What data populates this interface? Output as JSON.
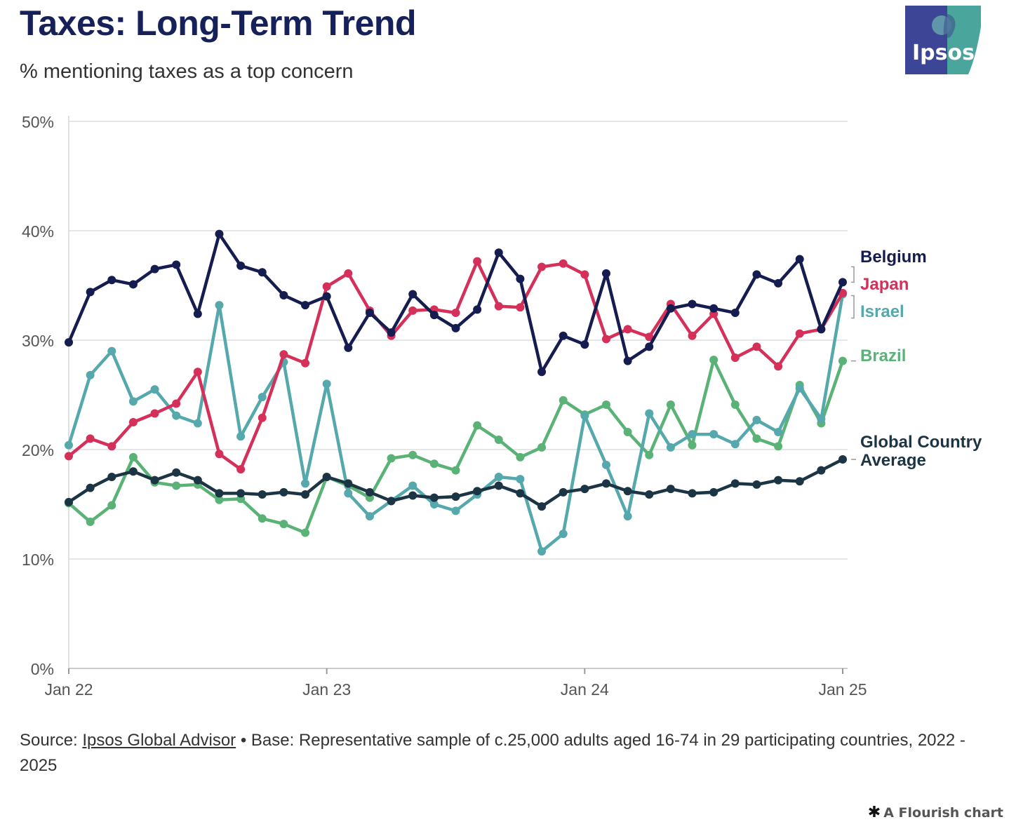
{
  "title": "Taxes: Long-Term Trend",
  "subtitle": "% mentioning taxes as a top concern",
  "logo_text": "Ipsos",
  "source": {
    "prefix": "Source: ",
    "link": "Ipsos Global Advisor",
    "text": " • Base: Representative sample of c.25,000 adults aged 16-74 in 29 participating countries, 2022 - 2025"
  },
  "credit": {
    "icon": "asterisk-icon",
    "label": "A Flourish chart"
  },
  "colors": {
    "title": "#16215a",
    "belgium": "#151c4f",
    "japan": "#d4305a",
    "israel": "#55a8ab",
    "brazil": "#5bb276",
    "global": "#1c3544",
    "logo_left": "#3d4596",
    "logo_right": "#4aa59c"
  },
  "chart_data": {
    "type": "line",
    "ylim": [
      0,
      50
    ],
    "y_ticks": [
      "0%",
      "10%",
      "20%",
      "30%",
      "40%",
      "50%"
    ],
    "x_ticks": [
      "Jan 22",
      "Jan 23",
      "Jan 24",
      "Jan 25"
    ],
    "x_start": "Jan 2022",
    "x_end": "Jan 2025",
    "grid": true,
    "legend": "right end labels",
    "series": [
      {
        "name": "Brazil",
        "key": "brazil",
        "values": [
          15.1,
          13.4,
          14.9,
          19.3,
          17.0,
          16.7,
          16.8,
          15.4,
          15.5,
          13.7,
          13.2,
          12.4,
          17.5,
          16.7,
          15.6,
          19.2,
          19.5,
          18.7,
          18.1,
          22.2,
          20.9,
          19.3,
          20.2,
          24.5,
          23.2,
          24.1,
          21.6,
          19.5,
          24.1,
          20.4,
          28.2,
          24.1,
          21.0,
          20.3,
          25.9,
          22.4,
          28.1
        ]
      },
      {
        "name": "Israel",
        "key": "israel",
        "values": [
          20.4,
          26.8,
          29.0,
          24.4,
          25.5,
          23.1,
          22.4,
          33.2,
          21.2,
          24.8,
          28.0,
          16.9,
          26.0,
          16.0,
          13.9,
          15.3,
          16.7,
          15.0,
          14.4,
          15.9,
          17.5,
          17.3,
          10.7,
          12.3,
          23.1,
          18.6,
          13.9,
          23.3,
          20.2,
          21.4,
          21.4,
          20.5,
          22.7,
          21.6,
          25.6,
          22.8,
          34.2
        ]
      },
      {
        "name": "Japan",
        "key": "japan",
        "values": [
          19.4,
          21.0,
          20.3,
          22.5,
          23.3,
          24.2,
          27.1,
          19.6,
          18.2,
          22.9,
          28.7,
          27.9,
          34.9,
          36.1,
          32.7,
          30.4,
          32.7,
          32.8,
          32.5,
          37.2,
          33.1,
          33.0,
          36.7,
          37.0,
          36.0,
          30.1,
          31.0,
          30.3,
          33.3,
          30.4,
          32.4,
          28.4,
          29.4,
          27.6,
          30.6,
          31.0,
          34.3
        ]
      },
      {
        "name": "Belgium",
        "key": "belgium",
        "values": [
          29.8,
          34.4,
          35.5,
          35.1,
          36.5,
          36.9,
          32.4,
          39.7,
          36.8,
          36.2,
          34.1,
          33.2,
          34.0,
          29.3,
          32.5,
          30.7,
          34.2,
          32.3,
          31.1,
          32.8,
          38.0,
          35.6,
          27.1,
          30.4,
          29.6,
          36.1,
          28.1,
          29.4,
          32.9,
          33.3,
          32.9,
          32.5,
          36.0,
          35.2,
          37.4,
          31.0,
          35.3
        ]
      },
      {
        "name": "Global Country Average",
        "key": "global",
        "values": [
          15.2,
          16.5,
          17.5,
          18.0,
          17.2,
          17.9,
          17.2,
          16.0,
          16.0,
          15.9,
          16.1,
          15.9,
          17.5,
          16.9,
          16.1,
          15.3,
          15.8,
          15.6,
          15.7,
          16.2,
          16.7,
          16.0,
          14.8,
          16.1,
          16.4,
          16.9,
          16.2,
          15.9,
          16.4,
          16.0,
          16.1,
          16.9,
          16.8,
          17.2,
          17.1,
          18.1,
          19.1
        ]
      }
    ],
    "end_labels": [
      {
        "key": "belgium",
        "label": "Belgium"
      },
      {
        "key": "japan",
        "label": "Japan"
      },
      {
        "key": "israel",
        "label": "Israel"
      },
      {
        "key": "brazil",
        "label": "Brazil"
      },
      {
        "key": "global",
        "label_lines": [
          "Global Country",
          "Average"
        ]
      }
    ]
  }
}
